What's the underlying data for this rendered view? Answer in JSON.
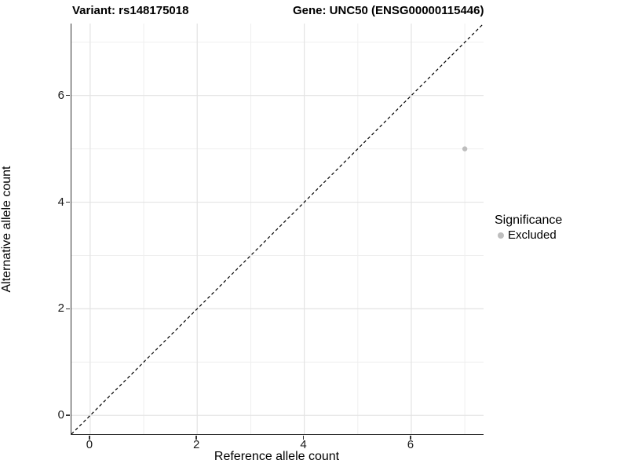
{
  "titles": {
    "variant": "Variant: rs148175018",
    "gene": "Gene: UNC50 (ENSG00000115446)"
  },
  "legend": {
    "title": "Significance",
    "items": [
      {
        "label": "Excluded",
        "color": "#bebebe"
      }
    ]
  },
  "chart_data": {
    "type": "scatter",
    "title": "Variant: rs148175018    Gene: UNC50 (ENSG00000115446)",
    "xlabel": "Reference allele count",
    "ylabel": "Alternative allele count",
    "xlim": [
      -0.35,
      7.35
    ],
    "ylim": [
      -0.35,
      7.35
    ],
    "x_major_ticks": [
      0,
      2,
      4,
      6
    ],
    "y_major_ticks": [
      0,
      2,
      4,
      6
    ],
    "x_minor_gridlines": [
      1,
      3,
      5,
      7
    ],
    "y_minor_gridlines": [
      1,
      3,
      5,
      7
    ],
    "grid": true,
    "legend_position": "right",
    "identity_line": {
      "type": "dashed",
      "equation": "y = x",
      "color": "#000000"
    },
    "series": [
      {
        "name": "Excluded",
        "color": "#bebebe",
        "points": [
          {
            "x": 7,
            "y": 5
          }
        ]
      }
    ],
    "colors": {
      "major_grid": "#e3e3e3",
      "minor_grid": "#efefef",
      "axis_line": "#333333",
      "point_excluded": "#bebebe"
    }
  }
}
